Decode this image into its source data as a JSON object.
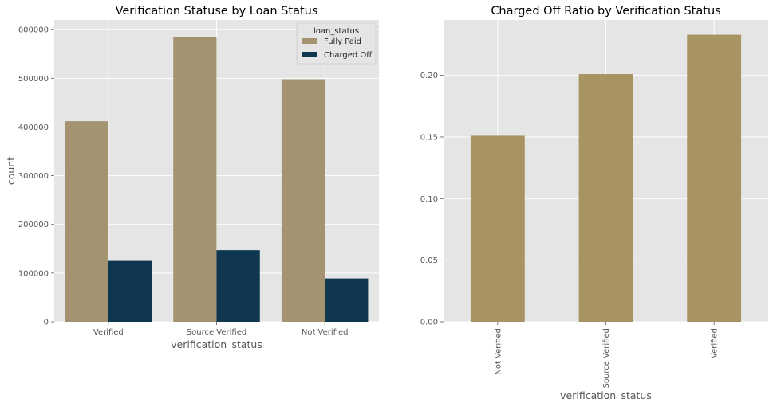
{
  "chart_data": [
    {
      "type": "bar",
      "title": "Verification Statuse by Loan Status",
      "xlabel": "verification_status",
      "ylabel": "count",
      "categories": [
        "Verified",
        "Source Verified",
        "Not Verified"
      ],
      "series": [
        {
          "name": "Fully Paid",
          "values": [
            412000,
            585000,
            498000
          ],
          "color": "#a39370"
        },
        {
          "name": "Charged Off",
          "values": [
            125000,
            147000,
            89000
          ],
          "color": "#0f3750"
        }
      ],
      "ylim": [
        0,
        620000
      ],
      "yticks": [
        0,
        100000,
        200000,
        300000,
        400000,
        500000,
        600000
      ],
      "legend": {
        "title": "loan_status",
        "placement": "top-right"
      },
      "grid": true,
      "background": "#e5e5e5"
    },
    {
      "type": "bar",
      "title": "Charged Off Ratio by Verification Status",
      "xlabel": "verification_status",
      "ylabel": "",
      "categories": [
        "Not Verified",
        "Source Verified",
        "Verified"
      ],
      "series": [
        {
          "values": [
            0.151,
            0.201,
            0.233
          ],
          "color": "#a89463"
        }
      ],
      "ylim": [
        0,
        0.245
      ],
      "yticks": [
        "0.00",
        "0.05",
        "0.10",
        "0.15",
        "0.20"
      ],
      "xtick_rotation": 90,
      "grid": true,
      "background": "#e5e5e5"
    }
  ]
}
